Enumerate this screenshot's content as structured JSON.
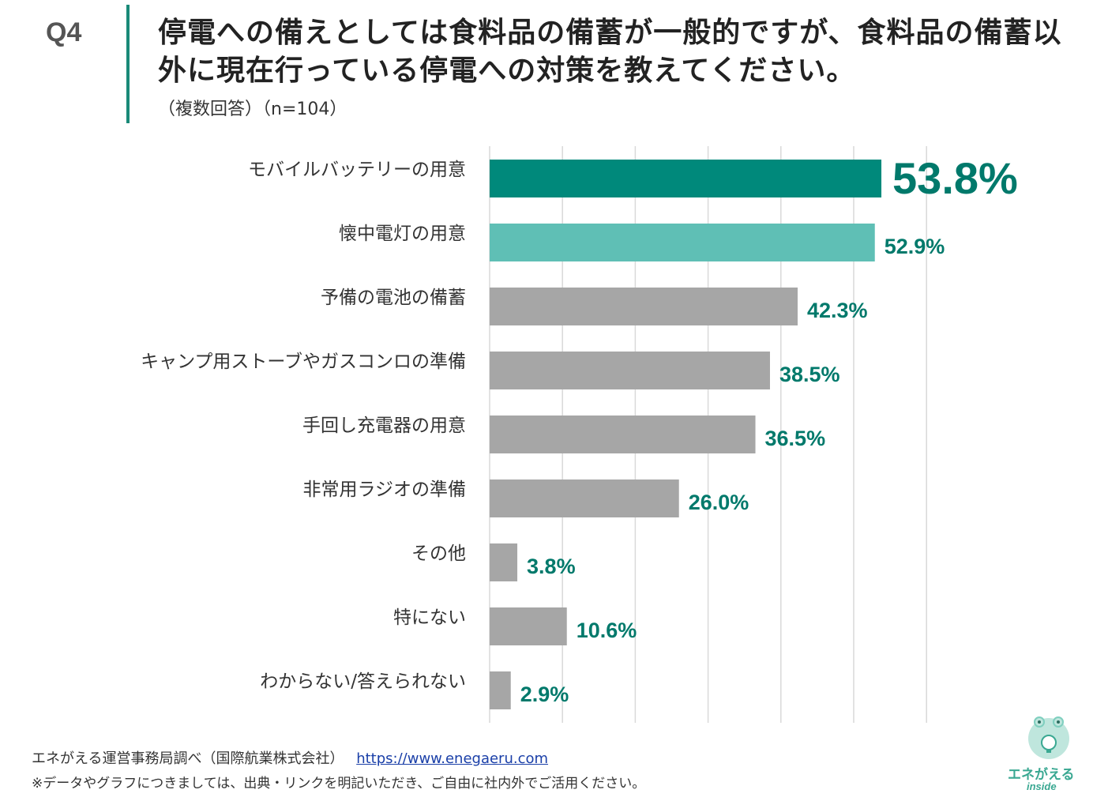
{
  "question": {
    "label": "Q4",
    "title": "停電への備えとしては食料品の備蓄が一般的ですが、食料品の備蓄以外に現在行っている停電への対策を教えてください。",
    "subtitle": "（複数回答）（n=104）"
  },
  "colors": {
    "accent": "#00897b",
    "second": "#5fbfb5",
    "other": "#a6a6a6",
    "label_text": "#00796b",
    "grid": "#d9d9d9"
  },
  "chart_data": {
    "type": "bar",
    "orientation": "horizontal",
    "categories": [
      "モバイルバッテリーの用意",
      "懐中電灯の用意",
      "予備の電池の備蓄",
      "キャンプ用ストーブやガスコンロの準備",
      "手回し充電器の用意",
      "非常用ラジオの準備",
      "その他",
      "特にない",
      "わからない/答えられない"
    ],
    "values": [
      53.8,
      52.9,
      42.3,
      38.5,
      36.5,
      26.0,
      3.8,
      10.6,
      2.9
    ],
    "value_labels": [
      "53.8%",
      "52.9%",
      "42.3%",
      "38.5%",
      "36.5%",
      "26.0%",
      "3.8%",
      "10.6%",
      "2.9%"
    ],
    "xlim": [
      0,
      60
    ],
    "grid": true,
    "legend": "none"
  },
  "footer": {
    "source": "エネがえる運営事務局調べ（国際航業株式会社）",
    "url": "https://www.enegaeru.com",
    "note": "※データやグラフにつきましては、出典・リンクを明記いただき、ご自由に社内外でご活用ください。"
  },
  "logo": {
    "text": "エネがえる",
    "sub": "inside"
  }
}
